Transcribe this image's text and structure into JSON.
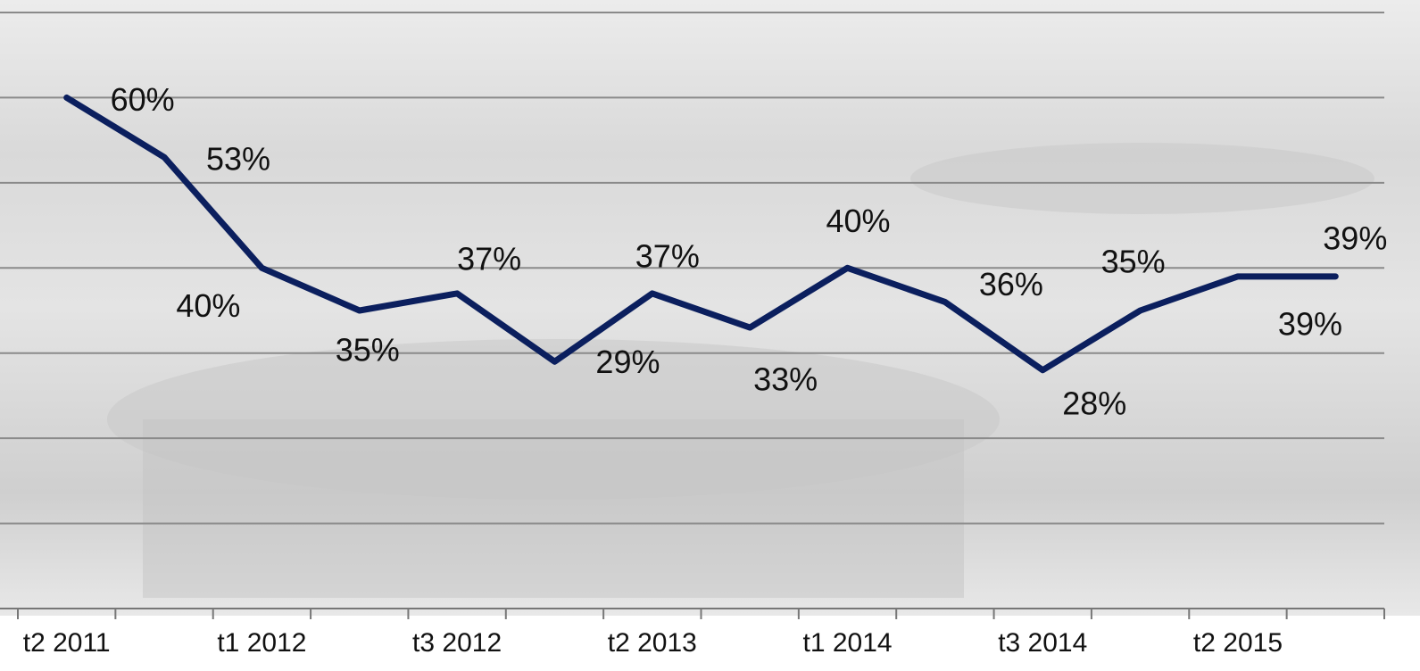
{
  "chart_data": {
    "type": "line",
    "categories": [
      "t2 2011",
      null,
      "t1 2012",
      null,
      "t3 2012",
      null,
      "t2 2013",
      null,
      "t1 2014",
      null,
      "t3 2014",
      null,
      "t2 2015",
      null
    ],
    "series": [
      {
        "color": "#0b1f5e",
        "values": [
          60,
          53,
          40,
          35,
          37,
          29,
          37,
          33,
          40,
          36,
          28,
          35,
          39,
          39
        ],
        "value_labels": [
          "60%",
          "53%",
          "40%",
          "35%",
          "37%",
          "29%",
          "37%",
          "33%",
          "40%",
          "36%",
          "28%",
          "35%",
          "39%",
          "39%"
        ]
      }
    ],
    "ylim": [
      0,
      70
    ],
    "yticks": [
      0,
      10,
      20,
      30,
      40,
      50,
      60,
      70
    ],
    "ytick_labels": false,
    "grid": true
  }
}
